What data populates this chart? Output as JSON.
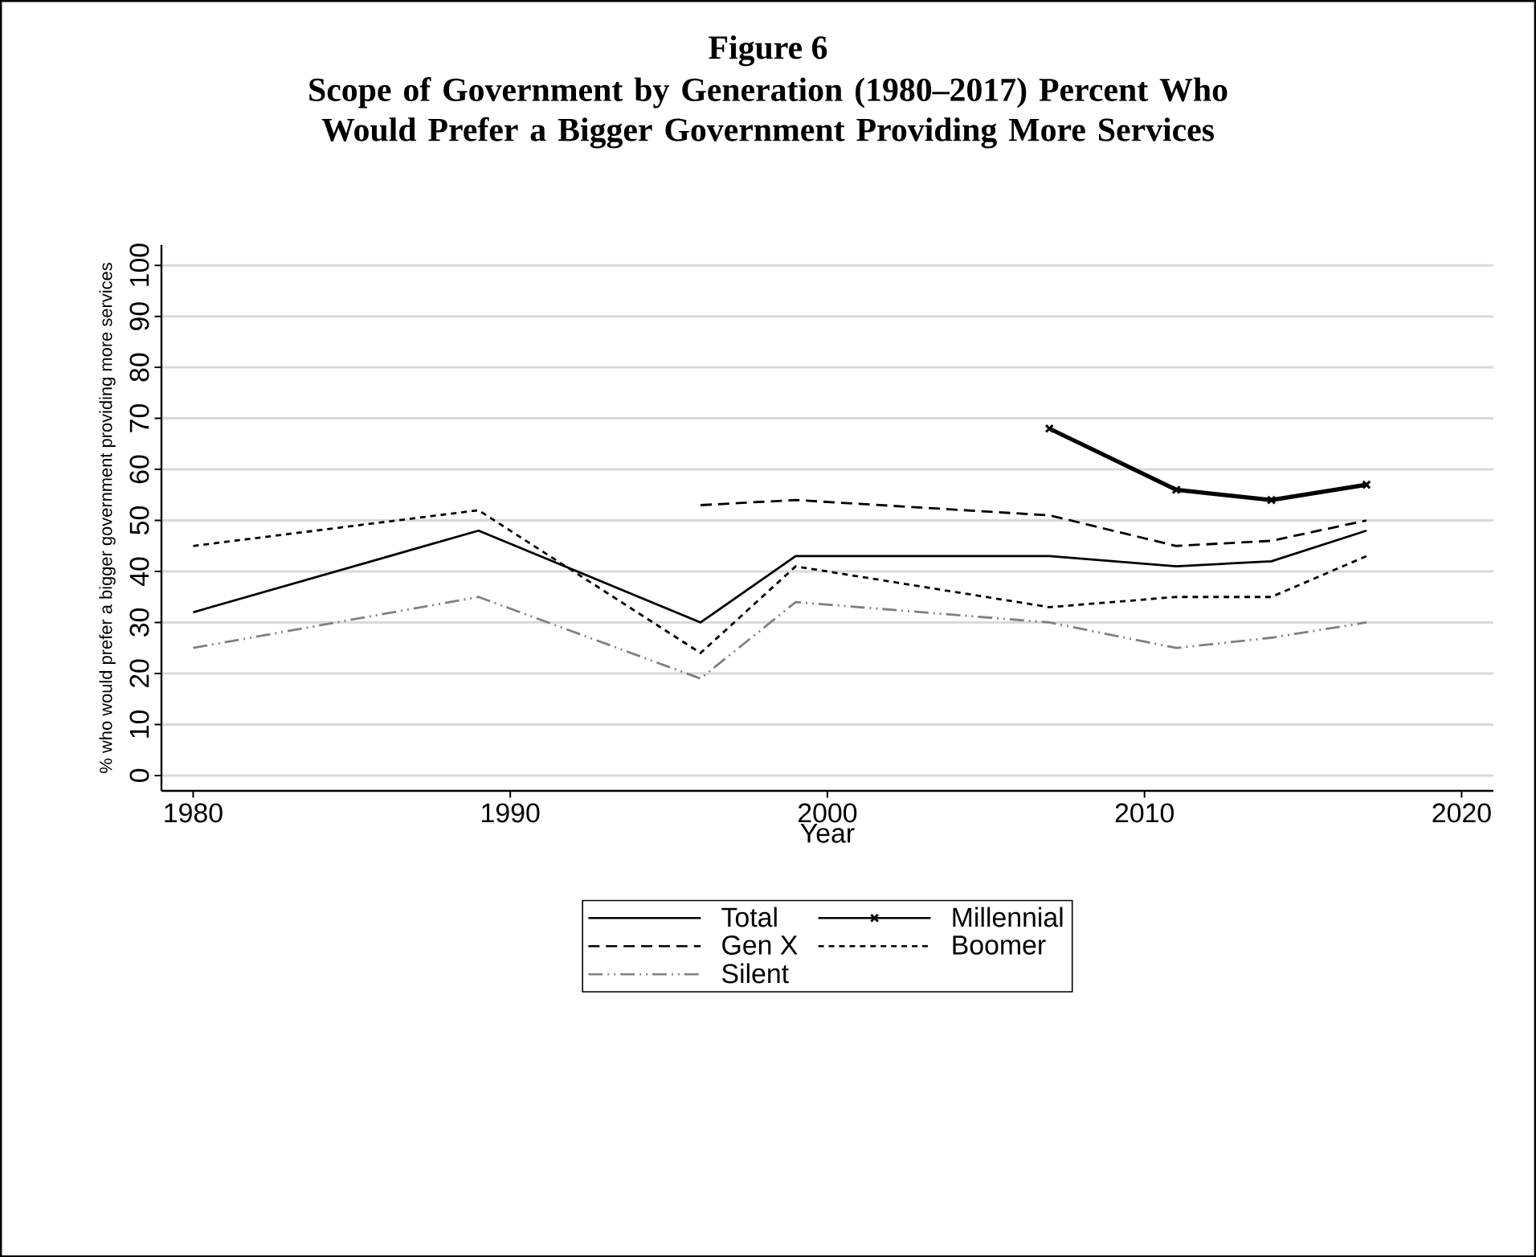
{
  "chart_data": {
    "type": "line",
    "title": "Figure 6",
    "subtitle": "Scope of Government by Generation (1980–2017) Percent Who Would Prefer a Bigger Government Providing More Services",
    "xlabel": "Year",
    "ylabel": "% who would prefer a bigger government providing more services",
    "xlim": [
      1979,
      2021
    ],
    "xticks": [
      1980,
      1990,
      2000,
      2010,
      2020
    ],
    "ylim": [
      -3,
      104
    ],
    "yticks": [
      0,
      10,
      20,
      30,
      40,
      50,
      60,
      70,
      80,
      90,
      100
    ],
    "grid": "y",
    "legend": "bottom",
    "series": [
      {
        "name": "Total",
        "color": "#000000",
        "line_style": "solid",
        "marker": "none",
        "x": [
          1980,
          1989,
          1996,
          1999,
          2007,
          2011,
          2014,
          2017
        ],
        "values": [
          32,
          48,
          30,
          43,
          43,
          41,
          42,
          48
        ]
      },
      {
        "name": "Millennial",
        "color": "#000000",
        "line_style": "solid",
        "marker": "cross",
        "x": [
          2007,
          2011,
          2014,
          2017
        ],
        "values": [
          68,
          56,
          54,
          57
        ]
      },
      {
        "name": "Gen X",
        "color": "#000000",
        "line_style": "dashed",
        "marker": "none",
        "x": [
          1996,
          1999,
          2007,
          2011,
          2014,
          2017
        ],
        "values": [
          53,
          54,
          51,
          45,
          46,
          50
        ]
      },
      {
        "name": "Boomer",
        "color": "#000000",
        "line_style": "dotted",
        "marker": "none",
        "x": [
          1980,
          1989,
          1996,
          1999,
          2007,
          2011,
          2014,
          2017
        ],
        "values": [
          45,
          52,
          24,
          41,
          33,
          35,
          35,
          43
        ]
      },
      {
        "name": "Silent",
        "color": "#808080",
        "line_style": "dashdot",
        "marker": "none",
        "x": [
          1980,
          1989,
          1996,
          1999,
          2007,
          2011,
          2014,
          2017
        ],
        "values": [
          25,
          35,
          19,
          34,
          30,
          25,
          27,
          30
        ]
      }
    ]
  }
}
